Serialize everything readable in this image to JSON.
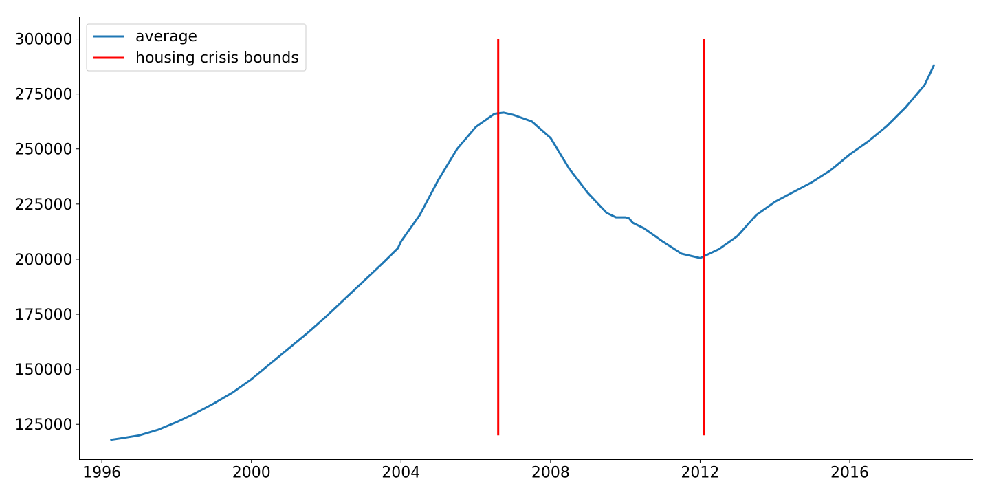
{
  "chart_data": {
    "type": "line",
    "title": "",
    "xlabel": "",
    "ylabel": "",
    "xlim": [
      1995.4,
      2019.3
    ],
    "ylim": [
      109000,
      310000
    ],
    "grid": false,
    "legend_placement": "top-left",
    "x_ticks": [
      {
        "value": 1996,
        "label": "1996"
      },
      {
        "value": 2000,
        "label": "2000"
      },
      {
        "value": 2004,
        "label": "2004"
      },
      {
        "value": 2008,
        "label": "2008"
      },
      {
        "value": 2012,
        "label": "2012"
      },
      {
        "value": 2016,
        "label": "2016"
      }
    ],
    "y_ticks": [
      {
        "value": 125000,
        "label": "125000"
      },
      {
        "value": 150000,
        "label": "150000"
      },
      {
        "value": 175000,
        "label": "175000"
      },
      {
        "value": 200000,
        "label": "200000"
      },
      {
        "value": 225000,
        "label": "225000"
      },
      {
        "value": 250000,
        "label": "250000"
      },
      {
        "value": 275000,
        "label": "275000"
      },
      {
        "value": 300000,
        "label": "300000"
      }
    ],
    "series": [
      {
        "name": "average",
        "color": "#1f77b4",
        "x": [
          1996.25,
          1996.5,
          1997.0,
          1997.5,
          1998.0,
          1998.5,
          1999.0,
          1999.5,
          2000.0,
          2000.5,
          2001.0,
          2001.5,
          2002.0,
          2002.5,
          2003.0,
          2003.5,
          2003.92,
          2004.0,
          2004.5,
          2005.0,
          2005.5,
          2006.0,
          2006.5,
          2006.75,
          2007.0,
          2007.5,
          2008.0,
          2008.5,
          2009.0,
          2009.5,
          2009.75,
          2010.0,
          2010.1,
          2010.2,
          2010.5,
          2011.0,
          2011.5,
          2012.0,
          2012.5,
          2013.0,
          2013.5,
          2014.0,
          2014.5,
          2015.0,
          2015.5,
          2016.0,
          2016.5,
          2017.0,
          2017.5,
          2018.0,
          2018.25
        ],
        "y": [
          118000,
          118600,
          120000,
          122500,
          126000,
          130000,
          134500,
          139500,
          145500,
          152500,
          159500,
          166500,
          174000,
          182000,
          190000,
          198000,
          205000,
          208000,
          220000,
          236000,
          250000,
          260000,
          266000,
          266500,
          265500,
          262500,
          255000,
          241000,
          230000,
          221000,
          219000,
          219000,
          218500,
          216500,
          214000,
          208000,
          202500,
          200500,
          204500,
          210500,
          220000,
          226000,
          230500,
          235000,
          240500,
          247500,
          253500,
          260500,
          269000,
          279000,
          288000
        ]
      },
      {
        "name": "housing crisis bounds",
        "color": "#ff0000",
        "segments": [
          {
            "x": 2006.6,
            "y0": 120000,
            "y1": 300000
          },
          {
            "x": 2012.1,
            "y0": 120000,
            "y1": 300000
          }
        ]
      }
    ]
  }
}
